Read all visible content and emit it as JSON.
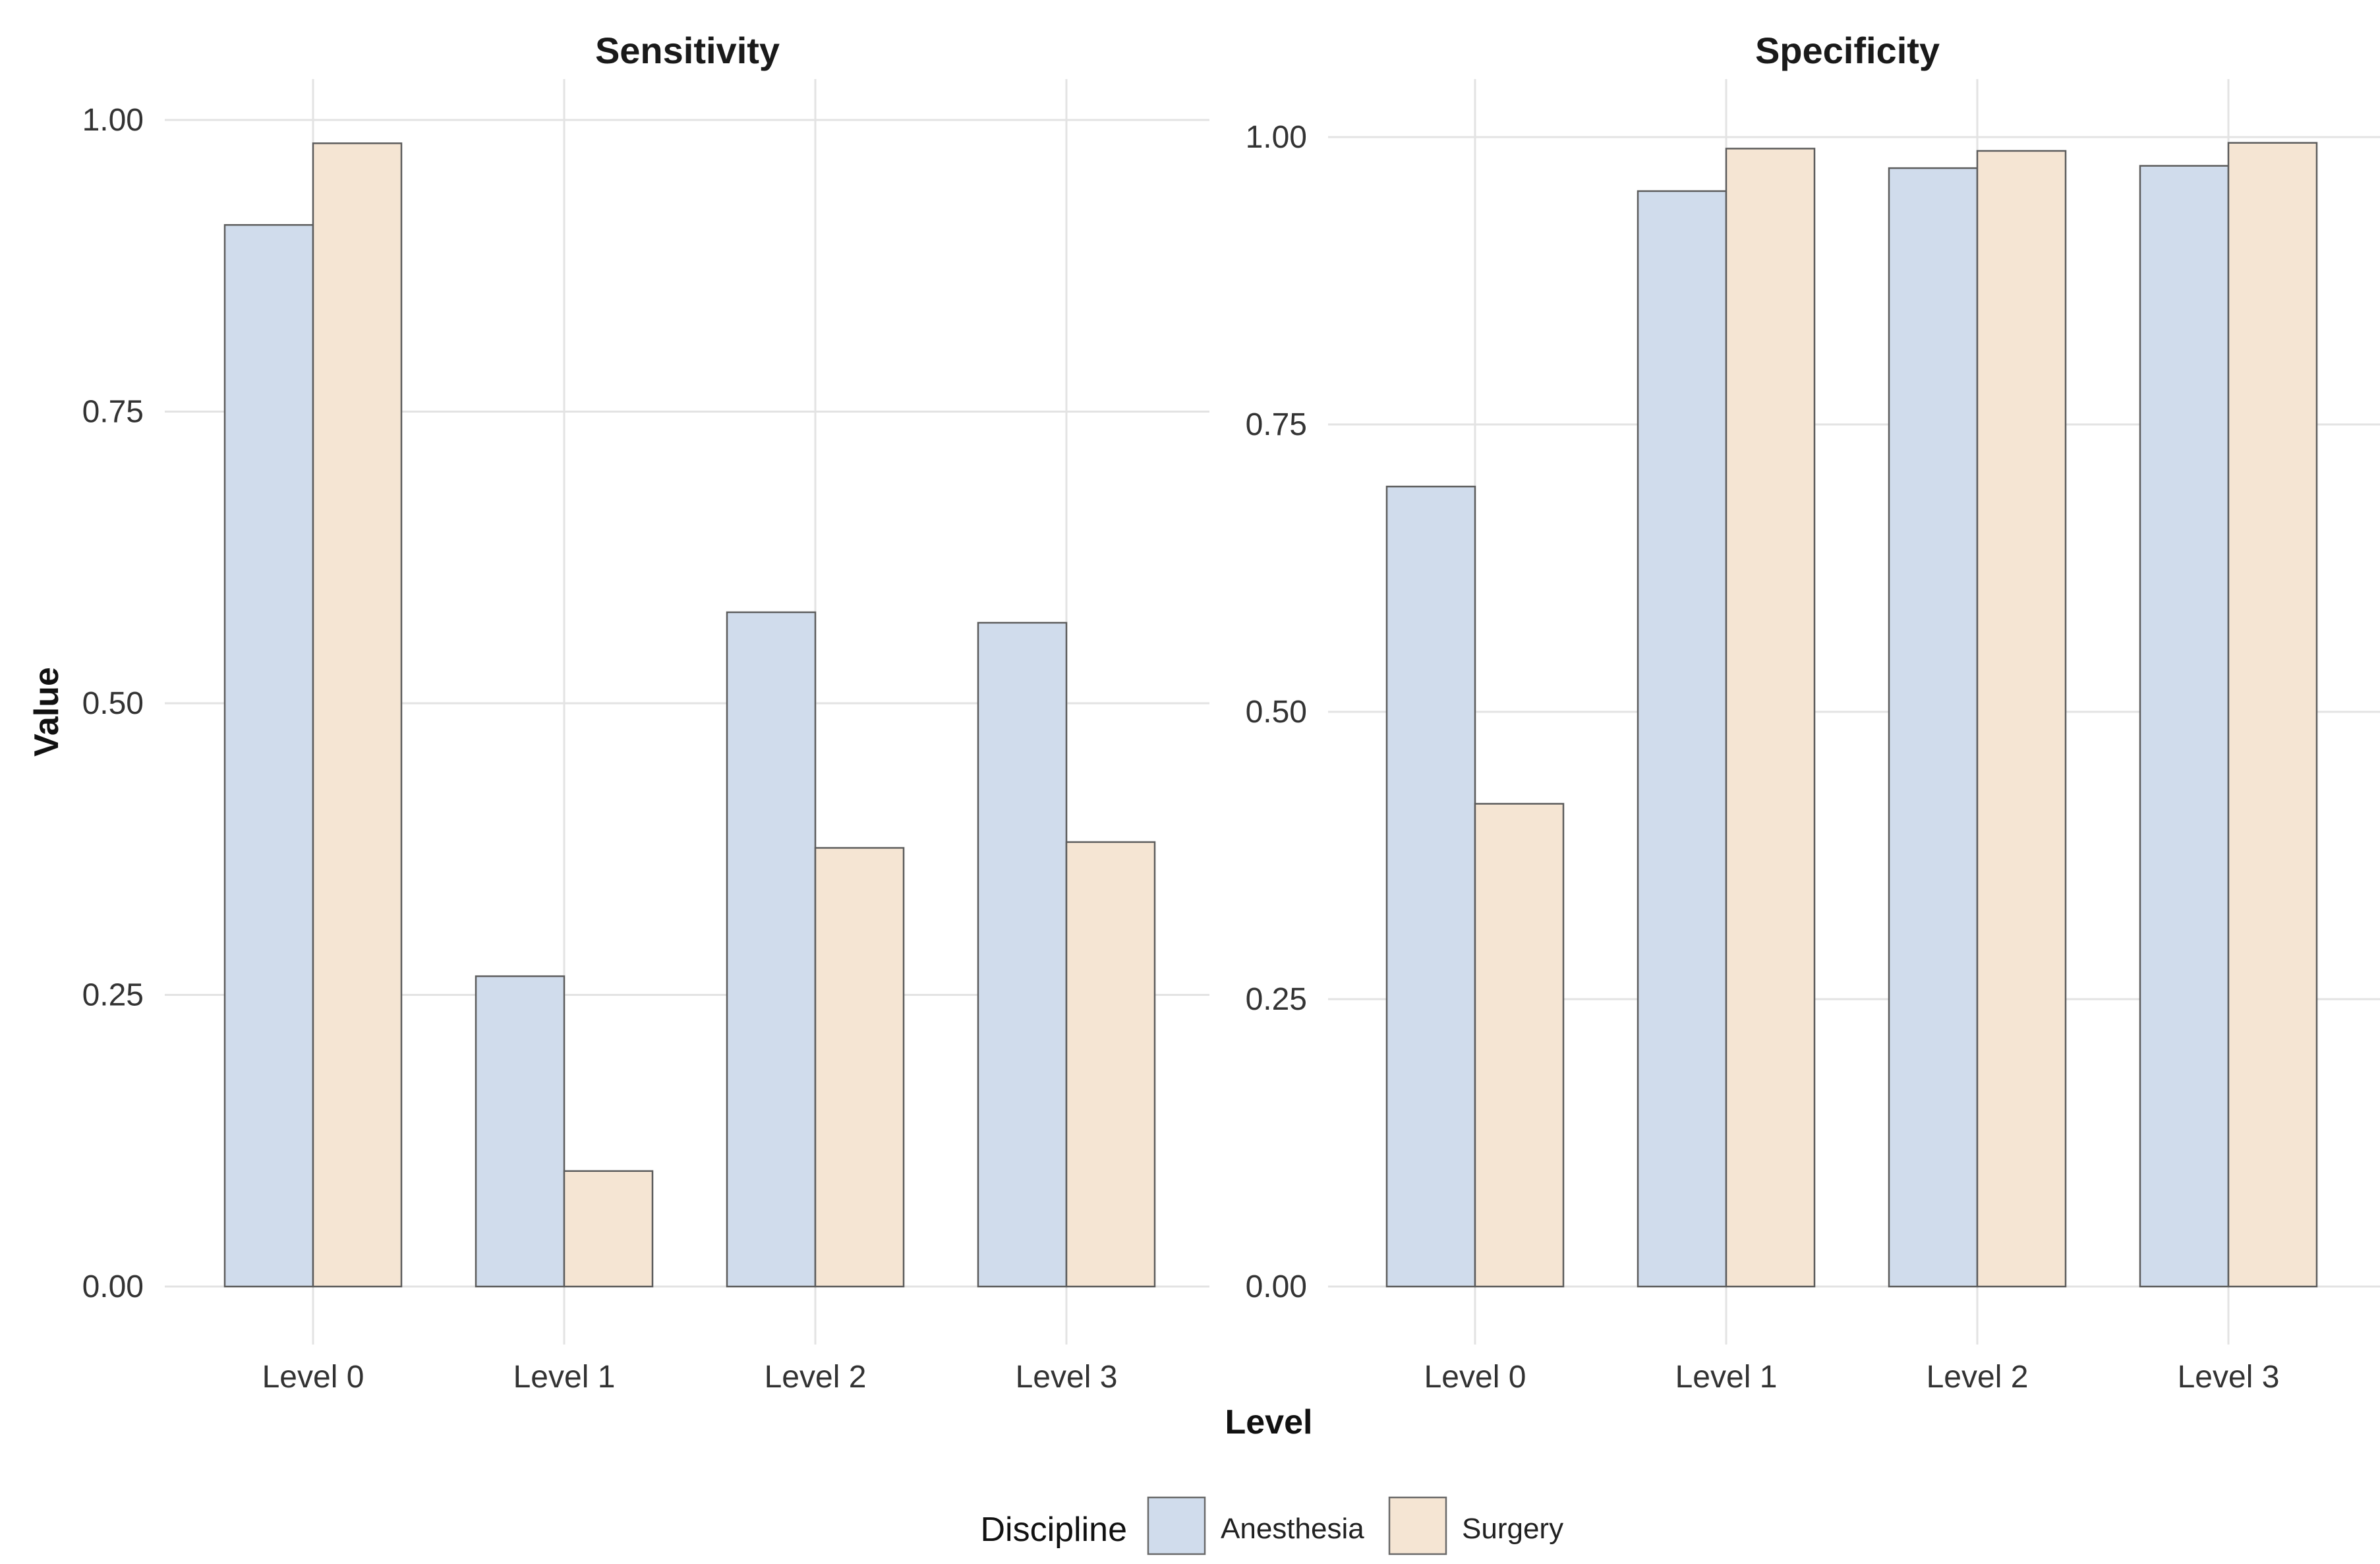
{
  "chart_data": {
    "type": "bar",
    "xlabel": "Level",
    "ylabel": "Value",
    "categories": [
      "Level 0",
      "Level 1",
      "Level 2",
      "Level 3"
    ],
    "ylim": [
      0,
      1
    ],
    "yticks": [
      "0.00",
      "0.25",
      "0.50",
      "0.75",
      "1.00"
    ],
    "ytick_values": [
      0,
      0.25,
      0.5,
      0.75,
      1.0
    ],
    "legend": {
      "title": "Discipline",
      "position": "bottom",
      "entries": [
        {
          "name": "Anesthesia",
          "color": "#d0dcec"
        },
        {
          "name": "Surgery",
          "color": "#f5e5d3"
        }
      ]
    },
    "panels": [
      {
        "title": "Sensitivity",
        "series": [
          {
            "name": "Anesthesia",
            "color": "#d0dcec",
            "values": [
              0.91,
              0.266,
              0.578,
              0.569
            ]
          },
          {
            "name": "Surgery",
            "color": "#f5e5d3",
            "values": [
              0.98,
              0.099,
              0.376,
              0.381
            ]
          }
        ]
      },
      {
        "title": "Specificity",
        "series": [
          {
            "name": "Anesthesia",
            "color": "#d0dcec",
            "values": [
              0.696,
              0.953,
              0.973,
              0.975
            ]
          },
          {
            "name": "Surgery",
            "color": "#f5e5d3",
            "values": [
              0.42,
              0.99,
              0.988,
              0.995
            ]
          }
        ]
      }
    ]
  }
}
